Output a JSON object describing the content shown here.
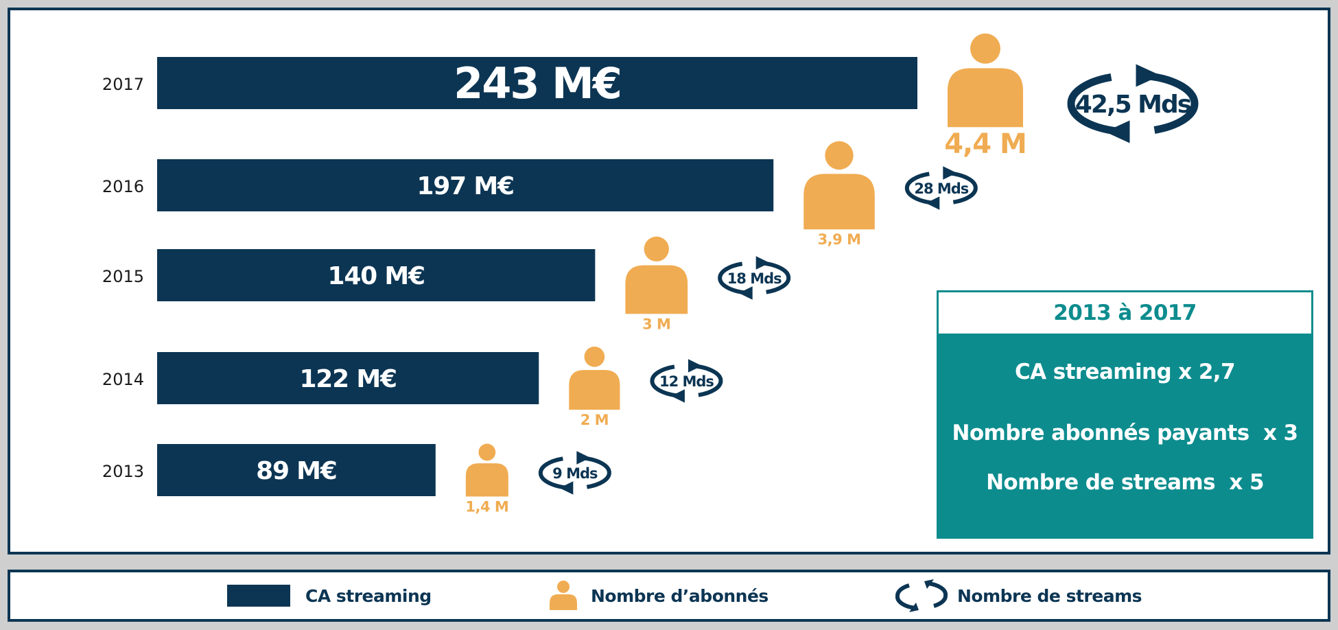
{
  "colors": {
    "bar": "#0c3553",
    "subscribers": "#f0ac52",
    "streams": "#0c3553",
    "summary_bg": "#0d8c8e",
    "summary_title": "#0d8c8e",
    "frame": "#0c3553"
  },
  "icons": {
    "subscribers": "person-icon",
    "streams": "cycle-arrows-icon"
  },
  "chart_data": {
    "type": "bar",
    "orientation": "horizontal",
    "categories": [
      "2017",
      "2016",
      "2015",
      "2014",
      "2013"
    ],
    "series": [
      {
        "name": "CA streaming",
        "values": [
          243,
          197,
          140,
          122,
          89
        ],
        "labels": [
          "243 M€",
          "197 M€",
          "140 M€",
          "122 M€",
          "89 M€"
        ]
      },
      {
        "name": "Nombre d’abonnés",
        "values": [
          4.4,
          3.9,
          3,
          2,
          1.4
        ],
        "labels": [
          "4,4 M",
          "3,9 M",
          "3 M",
          "2 M",
          "1,4 M"
        ]
      },
      {
        "name": "Nombre de streams",
        "values": [
          42.5,
          28,
          18,
          12,
          9
        ],
        "labels": [
          "42,5 Mds",
          "28 Mds",
          "18 Mds",
          "12 Mds",
          "9 Mds"
        ]
      }
    ],
    "grid": false,
    "legend_position": "bottom"
  },
  "summary": {
    "title": "2013 à 2017",
    "lines": [
      "CA streaming x 2,7",
      "Nombre abonnés payants  x 3",
      "Nombre de streams  x 5"
    ]
  },
  "legend": {
    "items": [
      {
        "label": "CA streaming",
        "icon": "bar-swatch"
      },
      {
        "label": "Nombre d’abonnés",
        "icon": "person-icon"
      },
      {
        "label": "Nombre de streams",
        "icon": "cycle-arrows-icon"
      }
    ]
  }
}
